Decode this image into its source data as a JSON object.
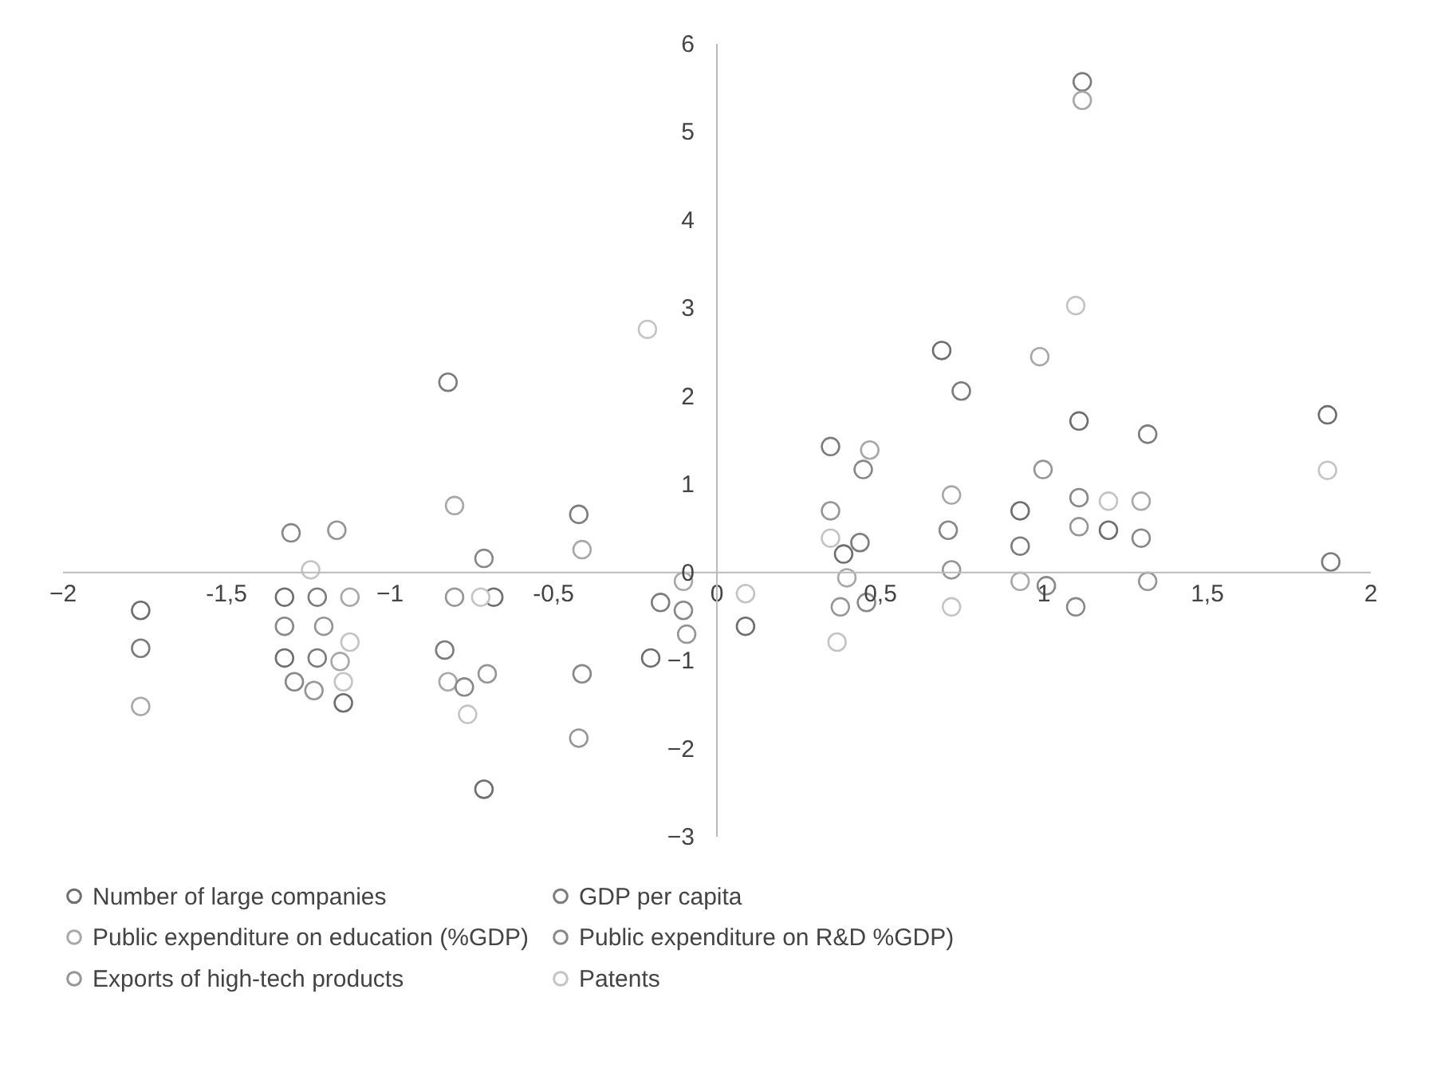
{
  "chart_data": {
    "type": "scatter",
    "marker": "circle",
    "legend": "bottom",
    "grid": false,
    "xlim": [
      -2,
      2
    ],
    "ylim": [
      -3,
      6
    ],
    "xticks": [
      -2,
      {
        "value": -1.5,
        "label": "-1,5"
      },
      -1,
      {
        "value": -0.5,
        "label": "-0,5"
      },
      0,
      {
        "value": 0.5,
        "label": "0,5"
      },
      1,
      {
        "value": 1.5,
        "label": "1,5"
      },
      2
    ],
    "yticks": [
      -3,
      -2,
      -1,
      0,
      1,
      2,
      3,
      4,
      5,
      6
    ],
    "series": [
      {
        "name": "Number of large companies",
        "color": "#6e6e6e",
        "x": [
          -1.76,
          -1.32,
          -1.32,
          -1.14,
          -0.68,
          -0.71,
          -0.2,
          0.09,
          0.39,
          0.69,
          0.93,
          1.11,
          1.2,
          1.87
        ],
        "values": [
          -0.44,
          -0.29,
          -0.98,
          -1.49,
          -0.29,
          -2.47,
          -0.98,
          -0.62,
          0.2,
          2.51,
          0.69,
          1.71,
          0.47,
          1.78
        ]
      },
      {
        "name": "GDP per capita",
        "color": "#7c7c7c",
        "x": [
          -1.76,
          -1.22,
          -1.22,
          -0.82,
          -0.83,
          -0.42,
          -0.17,
          0.35,
          0.44,
          0.75,
          0.93,
          1.12,
          1.32,
          1.88
        ],
        "values": [
          -0.87,
          -0.29,
          -0.98,
          2.15,
          -0.89,
          0.65,
          -0.35,
          1.42,
          0.33,
          2.05,
          0.29,
          5.56,
          1.56,
          0.11
        ]
      },
      {
        "name": "Public expenditure on education (%GDP)",
        "color": "#a8a8a8",
        "x": [
          -1.76,
          -1.12,
          -1.15,
          -0.8,
          -0.82,
          -0.41,
          -0.1,
          0.47,
          0.4,
          0.72,
          0.93,
          1.12,
          1.3,
          0.99
        ],
        "values": [
          -1.53,
          -0.29,
          -1.02,
          0.75,
          -1.25,
          0.25,
          -0.11,
          1.38,
          -0.07,
          0.87,
          -0.11,
          5.35,
          0.8,
          2.44
        ]
      },
      {
        "name": "Public expenditure on R&D %GDP)",
        "color": "#888888",
        "x": [
          -1.3,
          -1.32,
          -1.29,
          -0.71,
          -0.77,
          -0.41,
          -0.1,
          0.45,
          0.46,
          0.71,
          1.01,
          1.11,
          1.3,
          1.1
        ],
        "values": [
          0.44,
          -0.62,
          -1.25,
          0.15,
          -1.31,
          -1.16,
          -0.44,
          1.16,
          -0.35,
          0.47,
          -0.16,
          0.84,
          0.38,
          -0.4
        ]
      },
      {
        "name": "Exports of high-tech products",
        "color": "#969696",
        "x": [
          -1.16,
          -1.2,
          -1.23,
          -0.8,
          -0.7,
          -0.42,
          -0.09,
          0.35,
          0.38,
          0.72,
          1.0,
          1.11,
          1.32
        ],
        "values": [
          0.47,
          -0.62,
          -1.35,
          -0.29,
          -1.16,
          -1.89,
          -0.71,
          0.69,
          -0.4,
          0.02,
          1.16,
          0.51,
          -0.11
        ]
      },
      {
        "name": "Patents",
        "color": "#c4c4c4",
        "x": [
          -1.24,
          -1.12,
          -1.14,
          -0.72,
          -0.76,
          -0.21,
          0.09,
          0.35,
          0.37,
          0.72,
          1.1,
          1.2,
          1.87
        ],
        "values": [
          0.02,
          -0.8,
          -1.25,
          -0.29,
          -1.62,
          2.75,
          -0.25,
          0.38,
          -0.8,
          -0.4,
          3.02,
          0.8,
          1.15
        ]
      }
    ]
  }
}
